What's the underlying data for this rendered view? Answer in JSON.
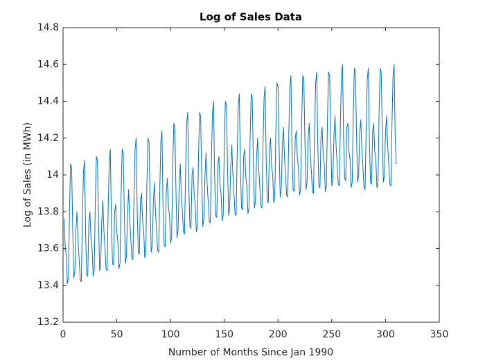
{
  "chart_data": {
    "type": "line",
    "title": "Log of Sales Data",
    "xlabel": "Number of Months Since Jan 1990",
    "ylabel": "Log of Sales (in MWh)",
    "color": "#0072bd",
    "xlim": [
      0,
      350
    ],
    "xticks": [
      0,
      50,
      100,
      150,
      200,
      250,
      300,
      350
    ],
    "ylim": [
      13.2,
      14.8
    ],
    "yticks": [
      13.2,
      13.4,
      13.6,
      13.8,
      14,
      14.2,
      14.4,
      14.6,
      14.8
    ],
    "x": [
      1,
      2,
      3,
      4,
      5,
      6,
      7,
      8,
      9,
      10,
      11,
      12,
      13,
      14,
      15,
      16,
      17,
      18,
      19,
      20,
      21,
      22,
      23,
      24,
      25,
      26,
      27,
      28,
      29,
      30,
      31,
      32,
      33,
      34,
      35,
      36,
      37,
      38,
      39,
      40,
      41,
      42,
      43,
      44,
      45,
      46,
      47,
      48,
      49,
      50,
      51,
      52,
      53,
      54,
      55,
      56,
      57,
      58,
      59,
      60,
      61,
      62,
      63,
      64,
      65,
      66,
      67,
      68,
      69,
      70,
      71,
      72,
      73,
      74,
      75,
      76,
      77,
      78,
      79,
      80,
      81,
      82,
      83,
      84,
      85,
      86,
      87,
      88,
      89,
      90,
      91,
      92,
      93,
      94,
      95,
      96,
      97,
      98,
      99,
      100,
      101,
      102,
      103,
      104,
      105,
      106,
      107,
      108,
      109,
      110,
      111,
      112,
      113,
      114,
      115,
      116,
      117,
      118,
      119,
      120,
      121,
      122,
      123,
      124,
      125,
      126,
      127,
      128,
      129,
      130,
      131,
      132,
      133,
      134,
      135,
      136,
      137,
      138,
      139,
      140,
      141,
      142,
      143,
      144,
      145,
      146,
      147,
      148,
      149,
      150,
      151,
      152,
      153,
      154,
      155,
      156,
      157,
      158,
      159,
      160,
      161,
      162,
      163,
      164,
      165,
      166,
      167,
      168,
      169,
      170,
      171,
      172,
      173,
      174,
      175,
      176,
      177,
      178,
      179,
      180,
      181,
      182,
      183,
      184,
      185,
      186,
      187,
      188,
      189,
      190,
      191,
      192,
      193,
      194,
      195,
      196,
      197,
      198,
      199,
      200,
      201,
      202,
      203,
      204,
      205,
      206,
      207,
      208,
      209,
      210,
      211,
      212,
      213,
      214,
      215,
      216,
      217,
      218,
      219,
      220,
      221,
      222,
      223,
      224,
      225,
      226,
      227,
      228,
      229,
      230,
      231,
      232,
      233,
      234,
      235,
      236,
      237,
      238,
      239,
      240,
      241,
      242,
      243,
      244,
      245,
      246,
      247,
      248,
      249,
      250,
      251,
      252,
      253,
      254,
      255,
      256,
      257,
      258,
      259,
      260,
      261,
      262,
      263,
      264,
      265,
      266,
      267,
      268,
      269,
      270,
      271,
      272,
      273,
      274,
      275,
      276,
      277,
      278,
      279,
      280,
      281,
      282,
      283,
      284,
      285,
      286,
      287,
      288,
      289,
      290,
      291,
      292,
      293,
      294,
      295,
      296,
      297,
      298,
      299,
      300,
      301,
      302,
      303,
      304,
      305,
      306,
      307,
      308,
      309,
      310
    ],
    "values": [
      13.76,
      13.61,
      13.56,
      13.41,
      13.44,
      13.81,
      14.06,
      14.04,
      13.71,
      13.44,
      13.48,
      13.71,
      13.8,
      13.64,
      13.54,
      13.43,
      13.42,
      13.76,
      14.02,
      14.08,
      13.68,
      13.46,
      13.45,
      13.74,
      13.8,
      13.65,
      13.6,
      13.45,
      13.48,
      13.85,
      14.1,
      14.08,
      13.75,
      13.48,
      13.52,
      13.75,
      13.86,
      13.7,
      13.6,
      13.49,
      13.48,
      13.82,
      14.08,
      14.14,
      13.74,
      13.52,
      13.51,
      13.8,
      13.84,
      13.69,
      13.64,
      13.49,
      13.52,
      13.89,
      14.14,
      14.12,
      13.79,
      13.52,
      13.56,
      13.79,
      13.92,
      13.76,
      13.66,
      13.55,
      13.54,
      13.88,
      14.14,
      14.2,
      13.8,
      13.58,
      13.57,
      13.86,
      13.9,
      13.75,
      13.7,
      13.55,
      13.58,
      13.95,
      14.2,
      14.18,
      13.85,
      13.58,
      13.62,
      13.85,
      13.96,
      13.8,
      13.7,
      13.59,
      13.58,
      13.92,
      14.18,
      14.24,
      13.84,
      13.62,
      13.61,
      13.9,
      13.98,
      13.83,
      13.78,
      13.63,
      13.66,
      14.03,
      14.28,
      14.26,
      13.93,
      13.66,
      13.7,
      13.93,
      14.06,
      13.9,
      13.8,
      13.69,
      13.68,
      14.02,
      14.28,
      14.34,
      13.94,
      13.72,
      13.71,
      14.0,
      14.04,
      13.89,
      13.84,
      13.69,
      13.72,
      14.09,
      14.34,
      14.32,
      13.99,
      13.72,
      13.76,
      13.99,
      14.12,
      13.96,
      13.86,
      13.75,
      13.74,
      14.08,
      14.34,
      14.4,
      14.0,
      13.78,
      13.77,
      14.06,
      14.1,
      13.95,
      13.9,
      13.75,
      13.78,
      14.15,
      14.4,
      14.38,
      14.05,
      13.78,
      13.82,
      14.05,
      14.16,
      14.0,
      13.9,
      13.79,
      13.78,
      14.12,
      14.38,
      14.44,
      14.04,
      13.82,
      13.81,
      14.1,
      14.14,
      13.99,
      13.94,
      13.79,
      13.82,
      14.19,
      14.44,
      14.42,
      14.09,
      13.82,
      13.86,
      14.09,
      14.2,
      14.04,
      13.94,
      13.83,
      13.82,
      14.16,
      14.42,
      14.48,
      14.08,
      13.86,
      13.85,
      14.14,
      14.2,
      14.05,
      14.0,
      13.85,
      13.88,
      14.25,
      14.5,
      14.48,
      14.15,
      13.88,
      13.92,
      14.15,
      14.26,
      14.1,
      14.0,
      13.89,
      13.88,
      14.22,
      14.48,
      14.54,
      14.14,
      13.92,
      13.91,
      14.2,
      14.24,
      14.09,
      14.04,
      13.89,
      13.92,
      14.29,
      14.54,
      14.52,
      14.19,
      13.92,
      13.96,
      14.19,
      14.28,
      14.12,
      14.02,
      13.91,
      13.9,
      14.24,
      14.5,
      14.56,
      14.16,
      13.94,
      13.93,
      14.22,
      14.26,
      14.11,
      14.06,
      13.91,
      13.94,
      14.31,
      14.56,
      14.54,
      14.21,
      13.94,
      13.98,
      14.21,
      14.32,
      14.16,
      14.06,
      13.95,
      13.94,
      14.28,
      14.54,
      14.6,
      14.2,
      13.98,
      13.97,
      14.26,
      14.28,
      14.13,
      14.08,
      13.93,
      13.96,
      14.33,
      14.58,
      14.56,
      14.23,
      13.96,
      14.0,
      14.23,
      14.3,
      14.14,
      14.04,
      13.93,
      13.92,
      14.26,
      14.52,
      14.58,
      14.18,
      13.96,
      13.95,
      14.24,
      14.28,
      14.13,
      14.08,
      13.93,
      13.96,
      14.33,
      14.58,
      14.56,
      14.23,
      13.96,
      14.0,
      14.23,
      14.32,
      14.16,
      14.06,
      13.95,
      13.94,
      14.28,
      14.54,
      14.6,
      14.2,
      14.06
    ]
  }
}
